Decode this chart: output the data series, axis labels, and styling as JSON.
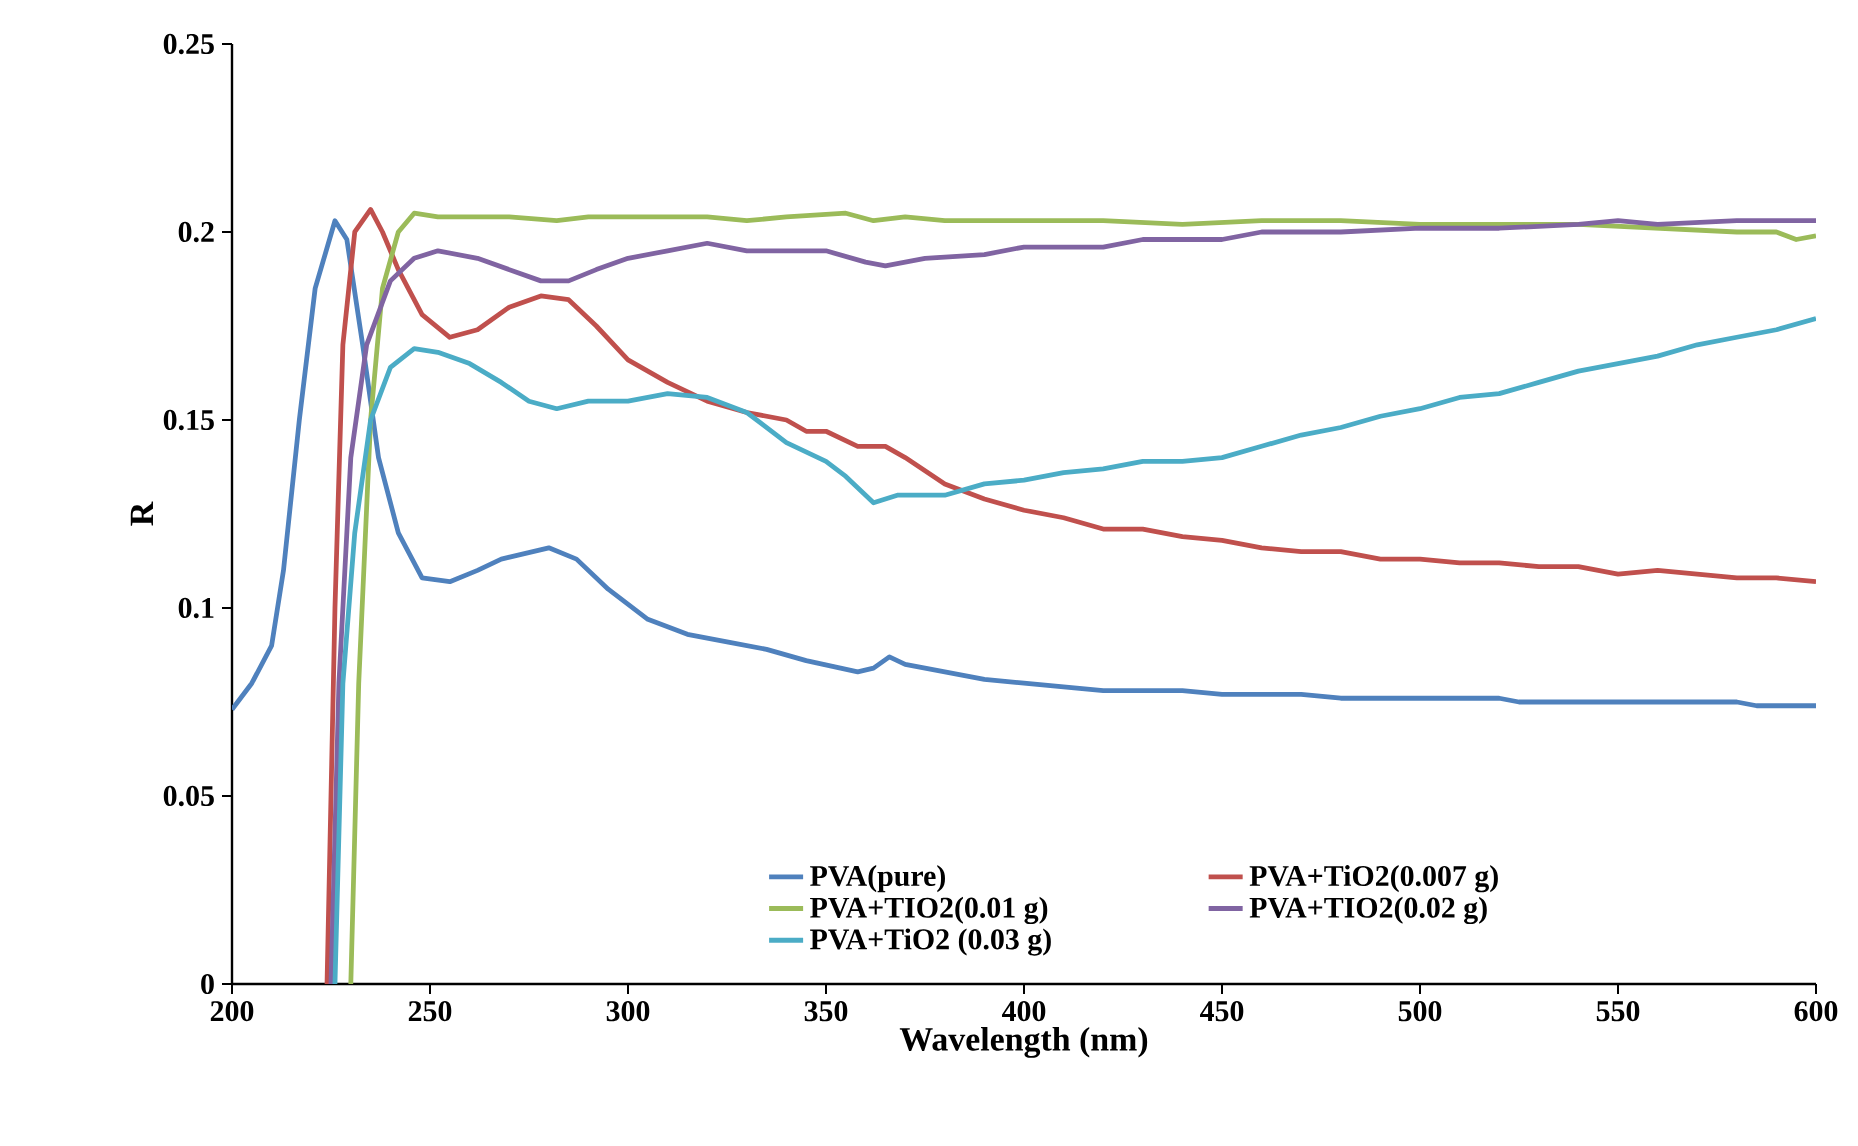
{
  "chart_data": {
    "type": "line",
    "xlabel": "Wavelength (nm)",
    "ylabel": "R",
    "xlim": [
      200,
      600
    ],
    "xticks": [
      200,
      250,
      300,
      350,
      400,
      450,
      500,
      550,
      600
    ],
    "ylim": [
      0,
      0.25
    ],
    "yticks": [
      0,
      0.05,
      0.1,
      0.15,
      0.2,
      0.25
    ],
    "grid": false,
    "legend": "bottom",
    "marker": "none",
    "line_style": "solid",
    "series": [
      {
        "name": "PVA(pure)",
        "color": "#4f81bd",
        "x": [
          200,
          205,
          210,
          213,
          217,
          221,
          226,
          229,
          233,
          237,
          242,
          248,
          255,
          262,
          268,
          280,
          287,
          295,
          305,
          315,
          325,
          335,
          345,
          358,
          362,
          366,
          370,
          380,
          390,
          400,
          410,
          420,
          440,
          450,
          470,
          480,
          520,
          525,
          580,
          585,
          600
        ],
        "values": [
          0.073,
          0.08,
          0.09,
          0.11,
          0.15,
          0.185,
          0.203,
          0.198,
          0.17,
          0.14,
          0.12,
          0.108,
          0.107,
          0.11,
          0.113,
          0.116,
          0.113,
          0.105,
          0.097,
          0.093,
          0.091,
          0.089,
          0.086,
          0.083,
          0.084,
          0.087,
          0.085,
          0.083,
          0.081,
          0.08,
          0.079,
          0.078,
          0.078,
          0.077,
          0.077,
          0.076,
          0.076,
          0.075,
          0.075,
          0.074,
          0.074
        ]
      },
      {
        "name": "PVA+TiO2(0.007 g)",
        "color": "#c0504d",
        "x": [
          224,
          226,
          228,
          231,
          235,
          238,
          242,
          248,
          255,
          262,
          270,
          278,
          285,
          292,
          300,
          310,
          320,
          330,
          340,
          345,
          350,
          358,
          365,
          370,
          380,
          390,
          400,
          410,
          420,
          430,
          440,
          450,
          460,
          470,
          480,
          490,
          500,
          510,
          520,
          530,
          540,
          550,
          560,
          570,
          580,
          590,
          600
        ],
        "values": [
          0,
          0.1,
          0.17,
          0.2,
          0.206,
          0.2,
          0.19,
          0.178,
          0.172,
          0.174,
          0.18,
          0.183,
          0.182,
          0.175,
          0.166,
          0.16,
          0.155,
          0.152,
          0.15,
          0.147,
          0.147,
          0.143,
          0.143,
          0.14,
          0.133,
          0.129,
          0.126,
          0.124,
          0.121,
          0.121,
          0.119,
          0.118,
          0.116,
          0.115,
          0.115,
          0.113,
          0.113,
          0.112,
          0.112,
          0.111,
          0.111,
          0.109,
          0.11,
          0.109,
          0.108,
          0.108,
          0.107
        ]
      },
      {
        "name": "PVA+TIO2(0.01 g)",
        "color": "#9bbb59",
        "x": [
          230,
          232,
          235,
          238,
          242,
          246,
          252,
          260,
          270,
          282,
          290,
          300,
          320,
          330,
          340,
          355,
          362,
          370,
          380,
          400,
          420,
          440,
          460,
          480,
          500,
          520,
          540,
          560,
          580,
          590,
          595,
          600
        ],
        "values": [
          0,
          0.08,
          0.15,
          0.185,
          0.2,
          0.205,
          0.204,
          0.204,
          0.204,
          0.203,
          0.204,
          0.204,
          0.204,
          0.203,
          0.204,
          0.205,
          0.203,
          0.204,
          0.203,
          0.203,
          0.203,
          0.202,
          0.203,
          0.203,
          0.202,
          0.202,
          0.202,
          0.201,
          0.2,
          0.2,
          0.198,
          0.199
        ]
      },
      {
        "name": "PVA+TIO2(0.02 g)",
        "color": "#8064a2",
        "x": [
          225,
          227,
          230,
          234,
          240,
          246,
          252,
          262,
          270,
          278,
          285,
          292,
          300,
          310,
          320,
          330,
          340,
          350,
          360,
          365,
          375,
          390,
          400,
          420,
          430,
          450,
          460,
          480,
          500,
          520,
          540,
          550,
          560,
          580,
          600
        ],
        "values": [
          0,
          0.08,
          0.14,
          0.17,
          0.187,
          0.193,
          0.195,
          0.193,
          0.19,
          0.187,
          0.187,
          0.19,
          0.193,
          0.195,
          0.197,
          0.195,
          0.195,
          0.195,
          0.192,
          0.191,
          0.193,
          0.194,
          0.196,
          0.196,
          0.198,
          0.198,
          0.2,
          0.2,
          0.201,
          0.201,
          0.202,
          0.203,
          0.202,
          0.203,
          0.203
        ]
      },
      {
        "name": "PVA+TiO2 (0.03 g)",
        "color": "#4bacc6",
        "x": [
          226,
          228,
          231,
          235,
          240,
          246,
          252,
          260,
          268,
          275,
          282,
          290,
          300,
          310,
          320,
          330,
          340,
          350,
          355,
          362,
          368,
          380,
          390,
          400,
          410,
          420,
          430,
          440,
          450,
          460,
          470,
          480,
          490,
          500,
          510,
          520,
          530,
          540,
          550,
          560,
          570,
          580,
          590,
          600
        ],
        "values": [
          0,
          0.08,
          0.12,
          0.15,
          0.164,
          0.169,
          0.168,
          0.165,
          0.16,
          0.155,
          0.153,
          0.155,
          0.155,
          0.157,
          0.156,
          0.152,
          0.144,
          0.139,
          0.135,
          0.128,
          0.13,
          0.13,
          0.133,
          0.134,
          0.136,
          0.137,
          0.139,
          0.139,
          0.14,
          0.143,
          0.146,
          0.148,
          0.151,
          0.153,
          0.156,
          0.157,
          0.16,
          0.163,
          0.165,
          0.167,
          0.17,
          0.172,
          0.174,
          0.177
        ]
      }
    ]
  }
}
